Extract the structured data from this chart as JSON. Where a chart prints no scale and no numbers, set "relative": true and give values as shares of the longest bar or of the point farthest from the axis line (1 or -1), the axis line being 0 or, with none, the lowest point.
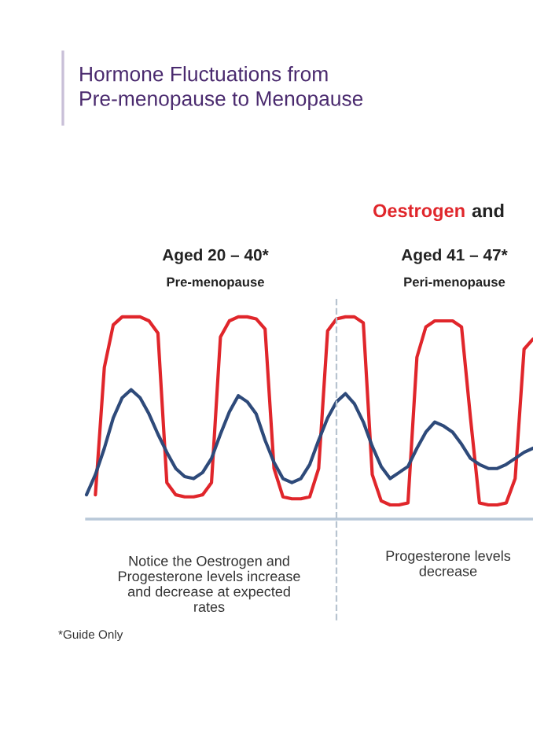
{
  "chart_data": {
    "type": "line",
    "relative": true,
    "title": "Hormone Fluctuations from\nPre-menopause to Menopause",
    "annotations": [
      "Oestrogen",
      "and",
      "Aged 20 – 40*",
      "Pre-menopause",
      "Aged 41 – 47*",
      "Peri-menopause",
      "Notice the Oestrogen and\nProgesterone levels increase\nand decrease at expected\nrates",
      "Progesterone levels\ndecrease",
      "*Guide Only"
    ],
    "categories": [
      null,
      null,
      null,
      null,
      null,
      null,
      null,
      null,
      null,
      null,
      null,
      null,
      null,
      null,
      null,
      null,
      null,
      null,
      null,
      null,
      null,
      null,
      null,
      null,
      null,
      null,
      null,
      null,
      null,
      null,
      null,
      null,
      null,
      null,
      null,
      null,
      null,
      null,
      null,
      null,
      null,
      null,
      null,
      null,
      null,
      null,
      null,
      null,
      null,
      null,
      null
    ],
    "marker": "none",
    "line_style": "solid",
    "series": [
      {
        "color": "#e0262b",
        "values": [
          null,
          0.12,
          0.75,
          0.96,
          1.0,
          1.0,
          1.0,
          0.98,
          0.92,
          0.18,
          0.12,
          0.11,
          0.11,
          0.12,
          0.18,
          0.9,
          0.98,
          1.0,
          1.0,
          0.99,
          0.94,
          0.25,
          0.11,
          0.1,
          0.1,
          0.11,
          0.25,
          0.93,
          0.99,
          1.0,
          1.0,
          0.97,
          0.22,
          0.09,
          0.07,
          0.07,
          0.08,
          0.8,
          0.95,
          0.98,
          0.98,
          0.98,
          0.95,
          0.5,
          0.08,
          0.07,
          0.07,
          0.08,
          0.2,
          0.84,
          0.89
        ]
      },
      {
        "color": "#2e4a7a",
        "values": [
          0.12,
          0.22,
          0.35,
          0.5,
          0.6,
          0.64,
          0.6,
          0.52,
          0.42,
          0.33,
          0.25,
          0.21,
          0.2,
          0.23,
          0.3,
          0.42,
          0.53,
          0.61,
          0.58,
          0.52,
          0.39,
          0.28,
          0.2,
          0.18,
          0.2,
          0.27,
          0.39,
          0.5,
          0.58,
          0.62,
          0.57,
          0.48,
          0.36,
          0.26,
          0.2,
          0.23,
          0.26,
          0.35,
          0.43,
          0.48,
          0.46,
          0.43,
          0.37,
          0.3,
          0.27,
          0.25,
          0.25,
          0.27,
          0.3,
          0.33,
          0.35
        ]
      }
    ]
  }
}
